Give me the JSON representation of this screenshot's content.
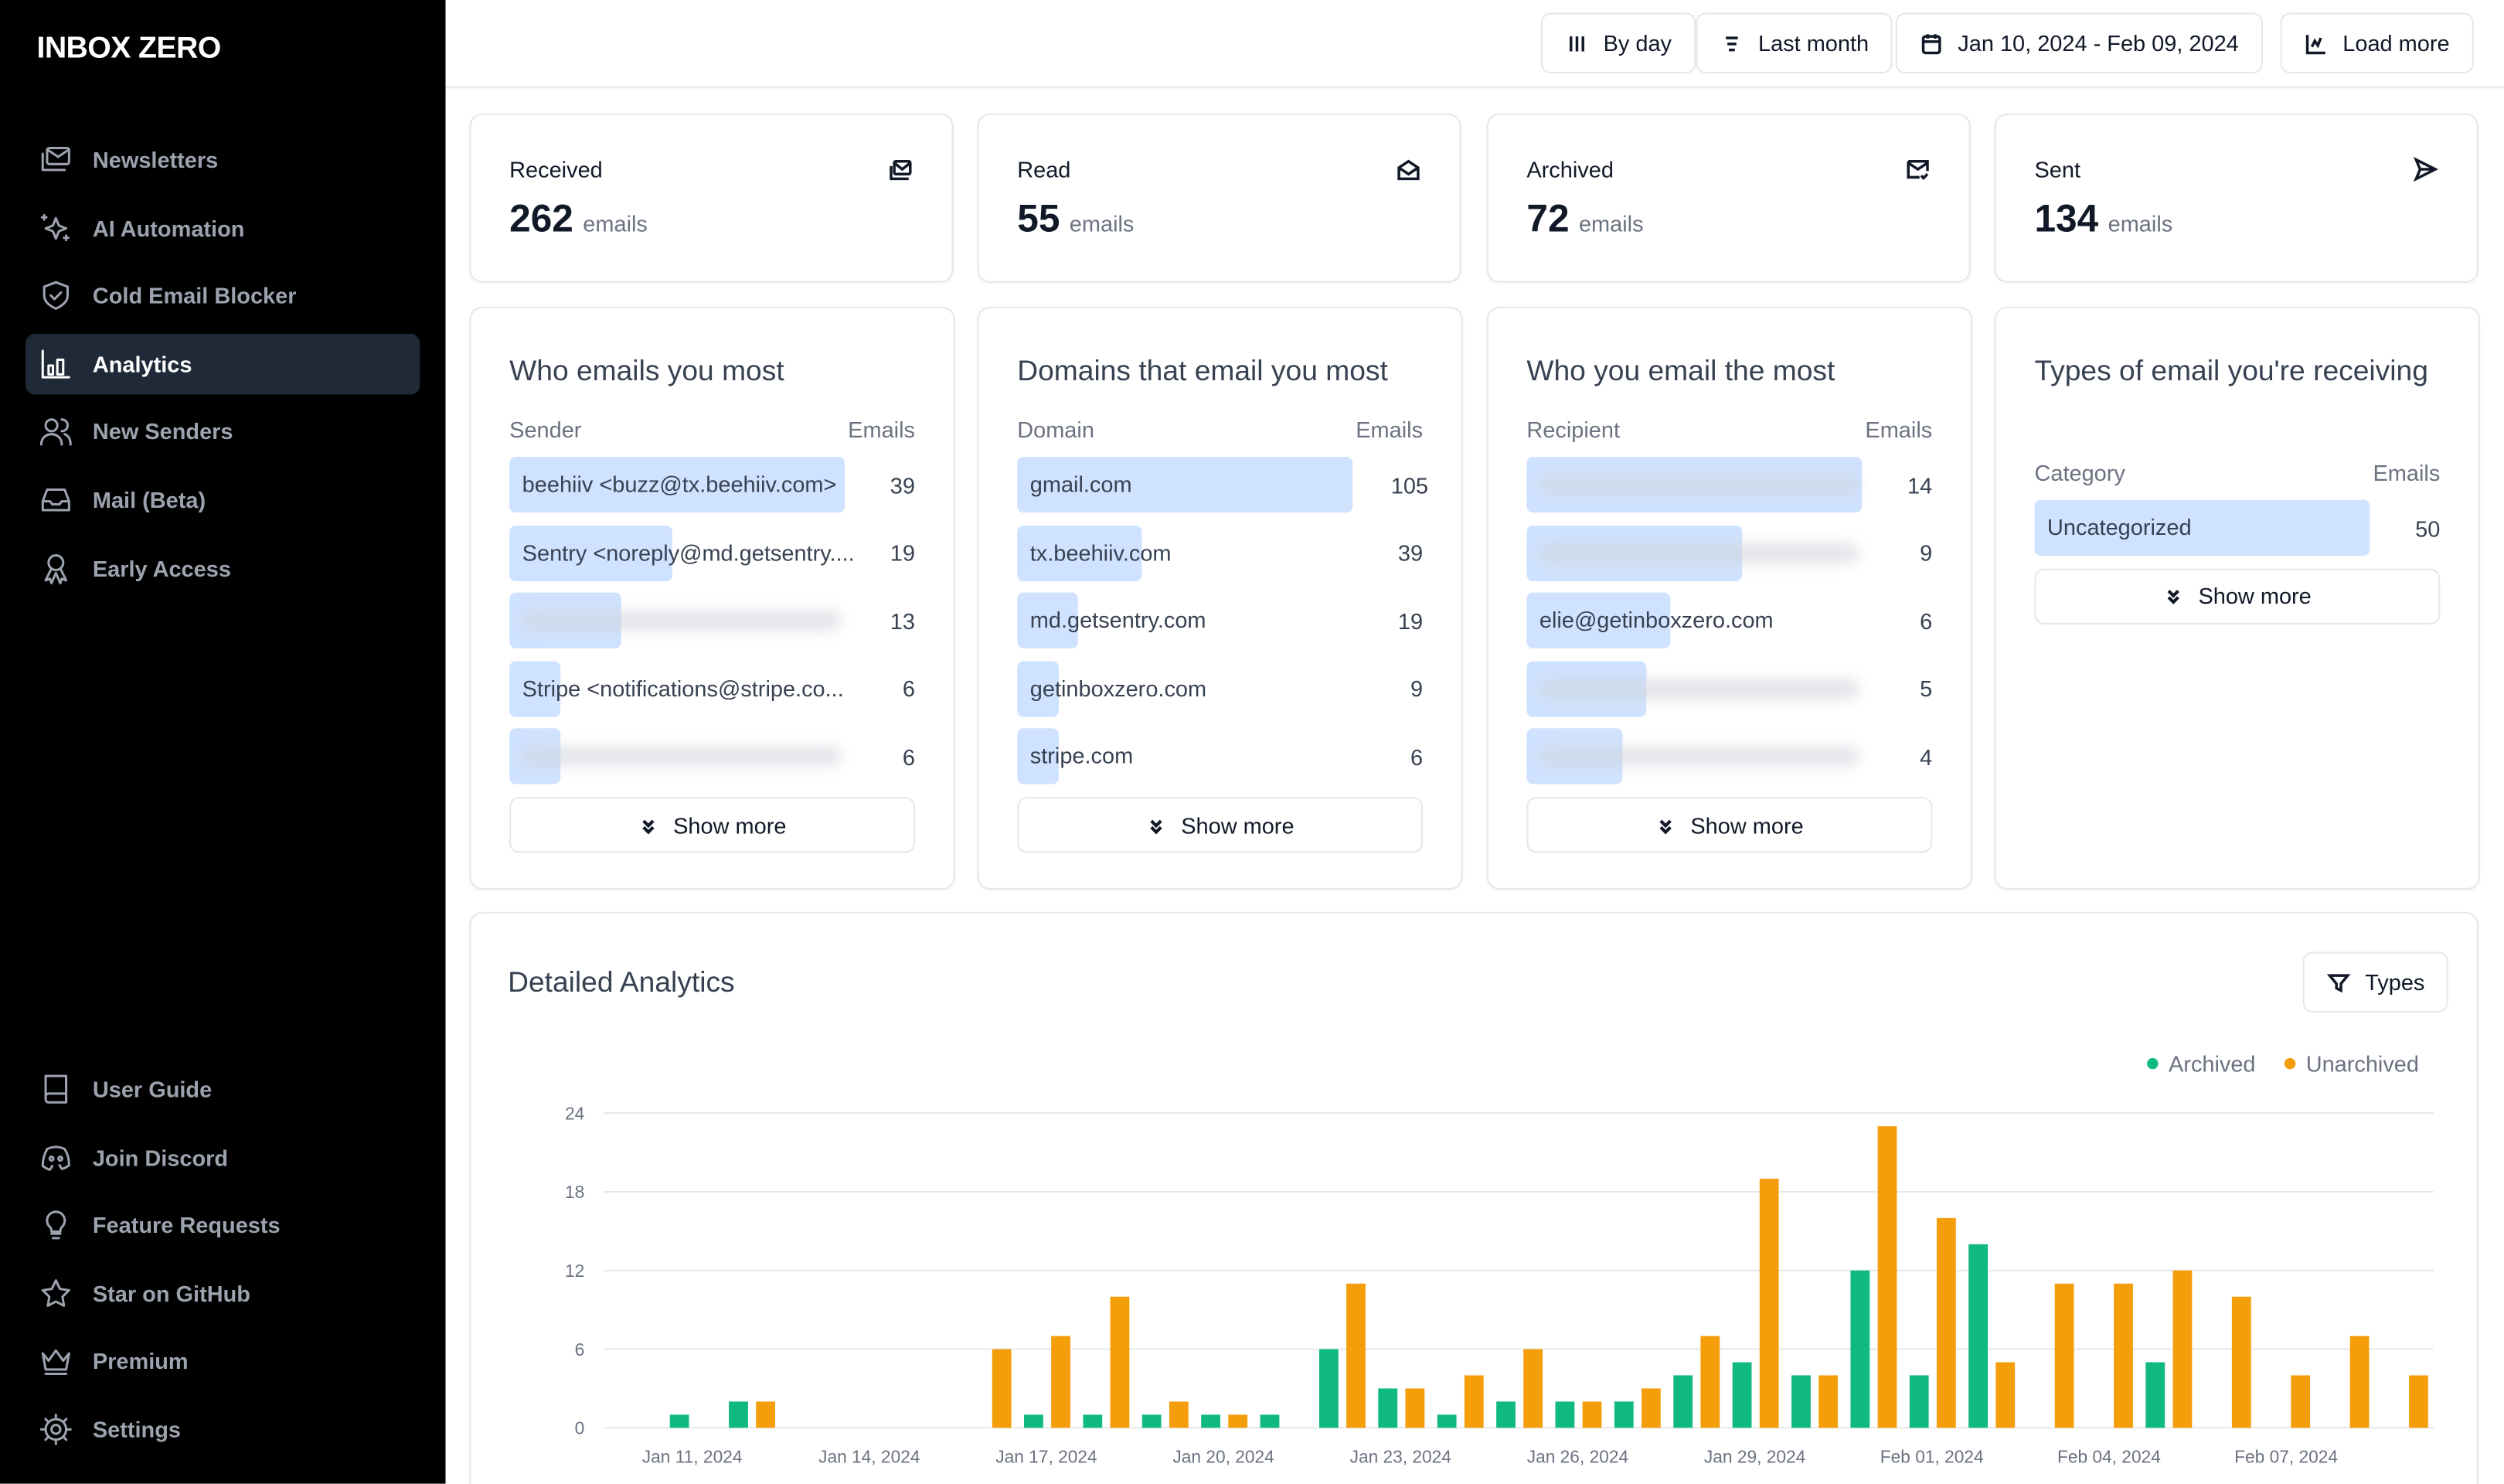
{
  "app": {
    "logo": "INBOX ZERO"
  },
  "sidebar": {
    "items": [
      {
        "label": "Newsletters",
        "icon": "newsletter-icon"
      },
      {
        "label": "AI Automation",
        "icon": "sparkles-icon"
      },
      {
        "label": "Cold Email Blocker",
        "icon": "shield-check-icon"
      },
      {
        "label": "Analytics",
        "icon": "bar-chart-icon",
        "active": true
      },
      {
        "label": "New Senders",
        "icon": "users-icon"
      },
      {
        "label": "Mail (Beta)",
        "icon": "inbox-icon"
      },
      {
        "label": "Early Access",
        "icon": "ribbon-icon"
      }
    ],
    "bottom_items": [
      {
        "label": "User Guide",
        "icon": "book-icon"
      },
      {
        "label": "Join Discord",
        "icon": "discord-icon"
      },
      {
        "label": "Feature Requests",
        "icon": "lightbulb-icon"
      },
      {
        "label": "Star on GitHub",
        "icon": "star-icon"
      },
      {
        "label": "Premium",
        "icon": "crown-icon"
      },
      {
        "label": "Settings",
        "icon": "gear-icon"
      }
    ]
  },
  "toolbar": {
    "by_day": "By day",
    "last_month": "Last month",
    "date_range": "Jan 10, 2024 - Feb 09, 2024",
    "load_more": "Load more"
  },
  "stats": [
    {
      "label": "Received",
      "value": "262",
      "unit": "emails",
      "icon": "mail-stack-icon"
    },
    {
      "label": "Read",
      "value": "55",
      "unit": "emails",
      "icon": "mail-open-icon"
    },
    {
      "label": "Archived",
      "value": "72",
      "unit": "emails",
      "icon": "mail-check-icon"
    },
    {
      "label": "Sent",
      "value": "134",
      "unit": "emails",
      "icon": "send-icon"
    }
  ],
  "tables": [
    {
      "title": "Who emails you most",
      "col1": "Sender",
      "col2": "Emails",
      "show_more": "Show more",
      "rows": [
        {
          "name": "beehiiv <buzz@tx.beehiiv.com>",
          "value": 39
        },
        {
          "name": "Sentry <noreply@md.getsentry....",
          "value": 19
        },
        {
          "name": "",
          "value": 13,
          "blurred": true
        },
        {
          "name": "Stripe <notifications@stripe.co...",
          "value": 6
        },
        {
          "name": "",
          "value": 6,
          "blurred": true
        }
      ]
    },
    {
      "title": "Domains that email you most",
      "col1": "Domain",
      "col2": "Emails",
      "show_more": "Show more",
      "rows": [
        {
          "name": "gmail.com",
          "value": 105
        },
        {
          "name": "tx.beehiiv.com",
          "value": 39
        },
        {
          "name": "md.getsentry.com",
          "value": 19
        },
        {
          "name": "getinboxzero.com",
          "value": 9
        },
        {
          "name": "stripe.com",
          "value": 6
        }
      ]
    },
    {
      "title": "Who you email the most",
      "col1": "Recipient",
      "col2": "Emails",
      "show_more": "Show more",
      "rows": [
        {
          "name": "",
          "value": 14,
          "blurred": true
        },
        {
          "name": "",
          "value": 9,
          "blurred": true
        },
        {
          "name": "elie@getinboxzero.com",
          "value": 6
        },
        {
          "name": "",
          "value": 5,
          "blurred": true
        },
        {
          "name": "",
          "value": 4,
          "blurred": true
        }
      ]
    },
    {
      "title": "Types of email you're receiving",
      "col1": "Category",
      "col2": "Emails",
      "show_more": "Show more",
      "rows": [
        {
          "name": "Uncategorized",
          "value": 50
        }
      ]
    }
  ],
  "detailed": {
    "title": "Detailed Analytics",
    "types_button": "Types"
  },
  "chart_data": {
    "type": "bar",
    "categories": [
      "Jan 10, 2024",
      "Jan 11, 2024",
      "Jan 12, 2024",
      "Jan 13, 2024",
      "Jan 14, 2024",
      "Jan 15, 2024",
      "Jan 16, 2024",
      "Jan 17, 2024",
      "Jan 18, 2024",
      "Jan 19, 2024",
      "Jan 20, 2024",
      "Jan 21, 2024",
      "Jan 22, 2024",
      "Jan 23, 2024",
      "Jan 24, 2024",
      "Jan 25, 2024",
      "Jan 26, 2024",
      "Jan 27, 2024",
      "Jan 28, 2024",
      "Jan 29, 2024",
      "Jan 30, 2024",
      "Jan 31, 2024",
      "Feb 01, 2024",
      "Feb 02, 2024",
      "Feb 03, 2024",
      "Feb 04, 2024",
      "Feb 05, 2024",
      "Feb 06, 2024",
      "Feb 07, 2024",
      "Feb 08, 2024",
      "Feb 09, 2024"
    ],
    "tick_labels": [
      "Jan 11, 2024",
      "Jan 14, 2024",
      "Jan 17, 2024",
      "Jan 20, 2024",
      "Jan 23, 2024",
      "Jan 26, 2024",
      "Jan 29, 2024",
      "Feb 01, 2024",
      "Feb 04, 2024",
      "Feb 07, 2024"
    ],
    "series": [
      {
        "name": "Archived",
        "color": "#10b981",
        "values": [
          0,
          1,
          2,
          0,
          0,
          0,
          0,
          1,
          1,
          1,
          1,
          1,
          6,
          3,
          1,
          2,
          2,
          2,
          4,
          5,
          4,
          12,
          4,
          14,
          0,
          0,
          5,
          0,
          0,
          0,
          0
        ]
      },
      {
        "name": "Unarchived",
        "color": "#f59e0b",
        "values": [
          0,
          0,
          2,
          0,
          0,
          0,
          6,
          7,
          10,
          2,
          1,
          0,
          11,
          3,
          4,
          6,
          2,
          3,
          7,
          19,
          4,
          23,
          16,
          5,
          11,
          11,
          12,
          10,
          4,
          7,
          4
        ]
      }
    ],
    "yticks": [
      0,
      6,
      12,
      18,
      24
    ],
    "ylim": [
      0,
      24
    ],
    "grid": true,
    "legend": "top-right"
  }
}
